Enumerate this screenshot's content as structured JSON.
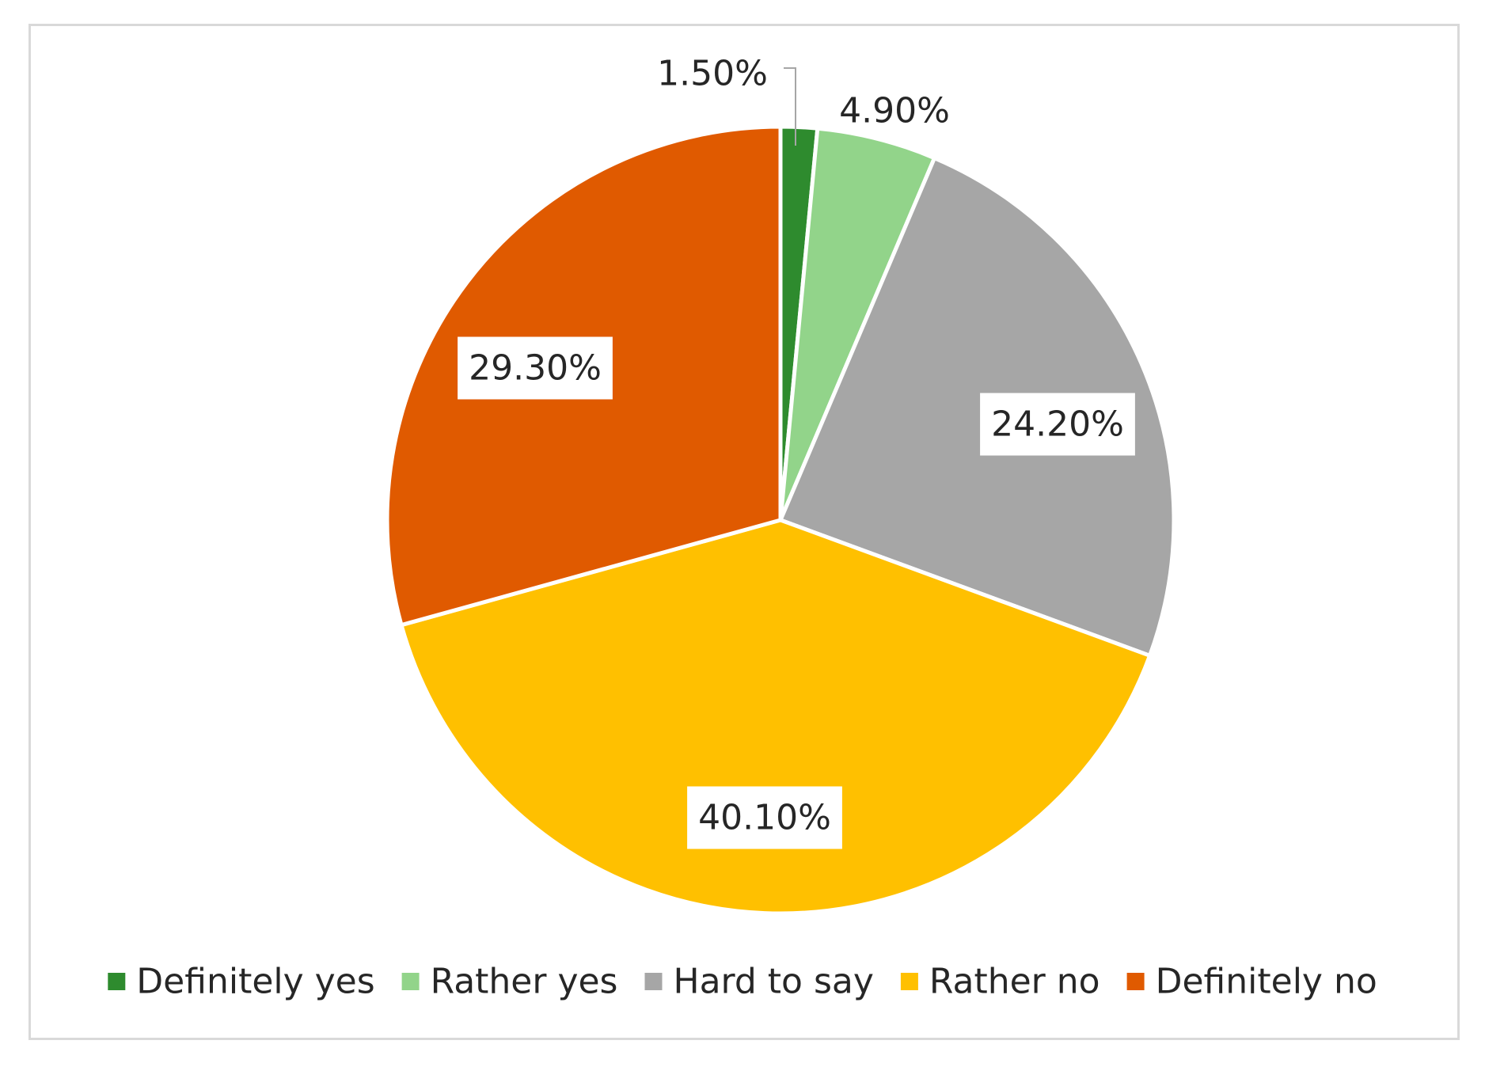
{
  "chart_data": {
    "type": "pie",
    "slices": [
      {
        "label": "Definitely yes",
        "value": 1.5,
        "display": "1.50%",
        "color": "#2e8b2e"
      },
      {
        "label": "Rather yes",
        "value": 4.9,
        "display": "4.90%",
        "color": "#92d48a"
      },
      {
        "label": "Hard to say",
        "value": 24.2,
        "display": "24.20%",
        "color": "#a6a6a6"
      },
      {
        "label": "Rather no",
        "value": 40.1,
        "display": "40.10%",
        "color": "#ffc000"
      },
      {
        "label": "Definitely no",
        "value": 29.3,
        "display": "29.30%",
        "color": "#e05a00"
      }
    ],
    "start_angle": "12 o'clock",
    "direction": "clockwise",
    "legend_position": "bottom"
  }
}
